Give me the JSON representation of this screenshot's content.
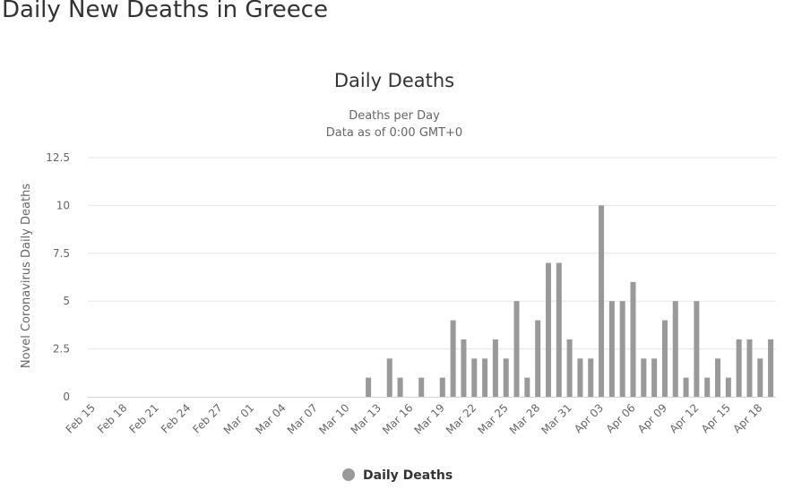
{
  "page": {
    "title": "Daily New Deaths in Greece"
  },
  "chart_data": {
    "type": "bar",
    "title": "Daily Deaths",
    "subtitle_line1": "Deaths per Day",
    "subtitle_line2": "Data as of 0:00 GMT+0",
    "xlabel": "",
    "ylabel": "Novel Coronavirus Daily Deaths",
    "ylim": [
      0,
      12.5
    ],
    "y_ticks": [
      "0",
      "2.5",
      "5",
      "7.5",
      "10",
      "12.5"
    ],
    "y_tick_values": [
      0,
      2.5,
      5,
      7.5,
      10,
      12.5
    ],
    "grid": true,
    "legend": {
      "position": "bottom-center"
    },
    "categories": [
      "Feb 15",
      "Feb 16",
      "Feb 17",
      "Feb 18",
      "Feb 19",
      "Feb 20",
      "Feb 21",
      "Feb 22",
      "Feb 23",
      "Feb 24",
      "Feb 25",
      "Feb 26",
      "Feb 27",
      "Feb 28",
      "Feb 29",
      "Mar 01",
      "Mar 02",
      "Mar 03",
      "Mar 04",
      "Mar 05",
      "Mar 06",
      "Mar 07",
      "Mar 08",
      "Mar 09",
      "Mar 10",
      "Mar 11",
      "Mar 12",
      "Mar 13",
      "Mar 14",
      "Mar 15",
      "Mar 16",
      "Mar 17",
      "Mar 18",
      "Mar 19",
      "Mar 20",
      "Mar 21",
      "Mar 22",
      "Mar 23",
      "Mar 24",
      "Mar 25",
      "Mar 26",
      "Mar 27",
      "Mar 28",
      "Mar 29",
      "Mar 30",
      "Mar 31",
      "Apr 01",
      "Apr 02",
      "Apr 03",
      "Apr 04",
      "Apr 05",
      "Apr 06",
      "Apr 07",
      "Apr 08",
      "Apr 09",
      "Apr 10",
      "Apr 11",
      "Apr 12",
      "Apr 13",
      "Apr 14",
      "Apr 15",
      "Apr 16",
      "Apr 17",
      "Apr 18",
      "Apr 19"
    ],
    "x_tick_labels": [
      "Feb 15",
      "Feb 18",
      "Feb 21",
      "Feb 24",
      "Feb 27",
      "Mar 01",
      "Mar 04",
      "Mar 07",
      "Mar 10",
      "Mar 13",
      "Mar 16",
      "Mar 19",
      "Mar 22",
      "Mar 25",
      "Mar 28",
      "Mar 31",
      "Apr 03",
      "Apr 06",
      "Apr 09",
      "Apr 12",
      "Apr 15",
      "Apr 18"
    ],
    "series": [
      {
        "name": "Daily Deaths",
        "color": "#999999",
        "values": [
          0,
          0,
          0,
          0,
          0,
          0,
          0,
          0,
          0,
          0,
          0,
          0,
          0,
          0,
          0,
          0,
          0,
          0,
          0,
          0,
          0,
          0,
          0,
          0,
          0,
          0,
          1,
          0,
          2,
          1,
          0,
          1,
          0,
          1,
          4,
          3,
          2,
          2,
          3,
          2,
          5,
          1,
          4,
          7,
          7,
          3,
          2,
          2,
          10,
          5,
          5,
          6,
          2,
          2,
          4,
          5,
          1,
          5,
          1,
          2,
          1,
          3,
          3,
          2,
          3
        ]
      }
    ],
    "colors": {
      "bar": "#999999",
      "grid": "#e6e6e6",
      "axis": "#ccd6eb",
      "text": "#333333",
      "label": "#666666"
    }
  }
}
